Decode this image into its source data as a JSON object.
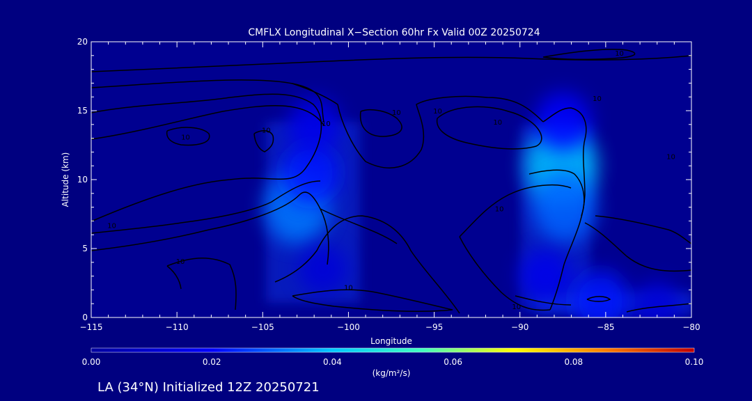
{
  "chart_data": {
    "type": "heatmap",
    "title": "CMFLX Longitudinal X−Section 60hr  Fx Valid 00Z 20250724",
    "xlabel": "Longitude",
    "ylabel": "Altitude (km)",
    "xlim": [
      -115,
      -80
    ],
    "ylim": [
      0,
      20
    ],
    "x_ticks": [
      -115,
      -110,
      -105,
      -100,
      -95,
      -90,
      -85,
      -80
    ],
    "x_tick_labels": [
      "−115",
      "−110",
      "−105",
      "−100",
      "−95",
      "−90",
      "−85",
      "−80"
    ],
    "y_ticks": [
      0,
      5,
      10,
      15,
      20
    ],
    "y_tick_labels": [
      "0",
      "5",
      "10",
      "15",
      "20"
    ],
    "colorbar": {
      "min": 0.0,
      "max": 0.1,
      "ticks": [
        0.0,
        0.02,
        0.04,
        0.06,
        0.08,
        0.1
      ],
      "tick_labels": [
        "0.00",
        "0.02",
        "0.04",
        "0.06",
        "0.08",
        "0.10"
      ],
      "unit": "(kg/m²/s)",
      "colors": [
        "#0000a0",
        "#0000ff",
        "#00c8ff",
        "#40ffbf",
        "#ffff00",
        "#ff8000",
        "#c00000"
      ]
    },
    "background_color": "#000080",
    "cells": [
      {
        "lon": -103,
        "alt": 8,
        "value": 0.032
      },
      {
        "lon": -102.2,
        "alt": 10.5,
        "value": 0.022
      },
      {
        "lon": -101.5,
        "alt": 3.5,
        "value": 0.012
      },
      {
        "lon": -102,
        "alt": 14,
        "value": 0.016
      },
      {
        "lon": -87.6,
        "alt": 11,
        "value": 0.04
      },
      {
        "lon": -87.4,
        "alt": 8,
        "value": 0.03
      },
      {
        "lon": -87.5,
        "alt": 14.2,
        "value": 0.02
      },
      {
        "lon": -88.5,
        "alt": 3,
        "value": 0.016
      },
      {
        "lon": -85.3,
        "alt": 1.2,
        "value": 0.022
      },
      {
        "lon": -82,
        "alt": 0.9,
        "value": 0.012
      }
    ],
    "contour_labels": [
      {
        "lon": -109.5,
        "alt": 12.9,
        "text": "10"
      },
      {
        "lon": -104.8,
        "alt": 13.4,
        "text": "10"
      },
      {
        "lon": -101.3,
        "alt": 13.9,
        "text": "10"
      },
      {
        "lon": -97.2,
        "alt": 14.7,
        "text": "10"
      },
      {
        "lon": -94.8,
        "alt": 14.8,
        "text": "10"
      },
      {
        "lon": -91.3,
        "alt": 14.0,
        "text": "10"
      },
      {
        "lon": -85.5,
        "alt": 15.7,
        "text": "10"
      },
      {
        "lon": -81.2,
        "alt": 11.5,
        "text": "10"
      },
      {
        "lon": -84.2,
        "alt": 19.0,
        "text": "10"
      },
      {
        "lon": -113.8,
        "alt": 6.5,
        "text": "10"
      },
      {
        "lon": -109.8,
        "alt": 3.9,
        "text": "10"
      },
      {
        "lon": -100.0,
        "alt": 2.0,
        "text": "10"
      },
      {
        "lon": -91.2,
        "alt": 7.7,
        "text": "10"
      },
      {
        "lon": -90.2,
        "alt": 0.6,
        "text": "10"
      }
    ]
  },
  "footer_label": "LA (34°N) Initialized 12Z 20250721"
}
